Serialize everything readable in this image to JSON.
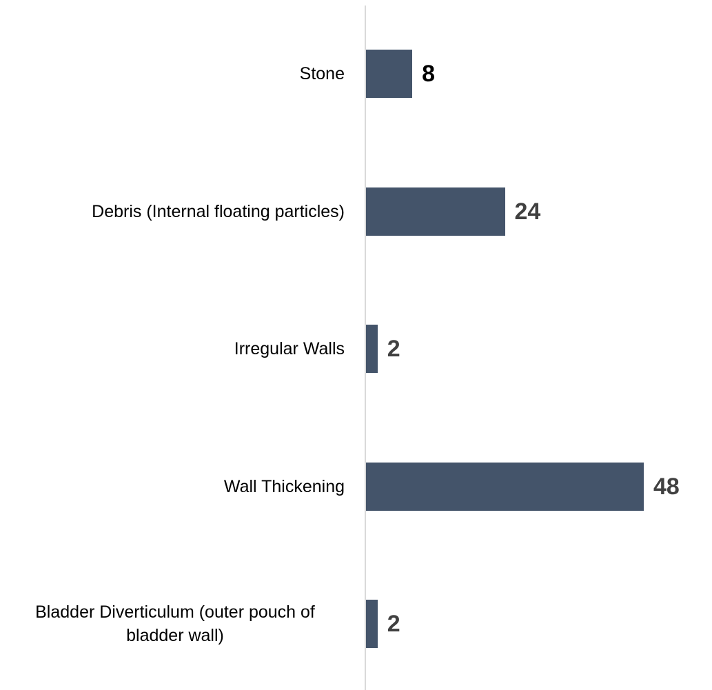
{
  "chart_data": {
    "type": "bar",
    "orientation": "horizontal",
    "categories": [
      "Stone",
      "Debris (Internal floating particles)",
      "Irregular Walls",
      "Wall Thickening",
      "Bladder Diverticulum (outer pouch of bladder wall)"
    ],
    "values": [
      8,
      24,
      2,
      48,
      2
    ],
    "color": "#44546a"
  }
}
